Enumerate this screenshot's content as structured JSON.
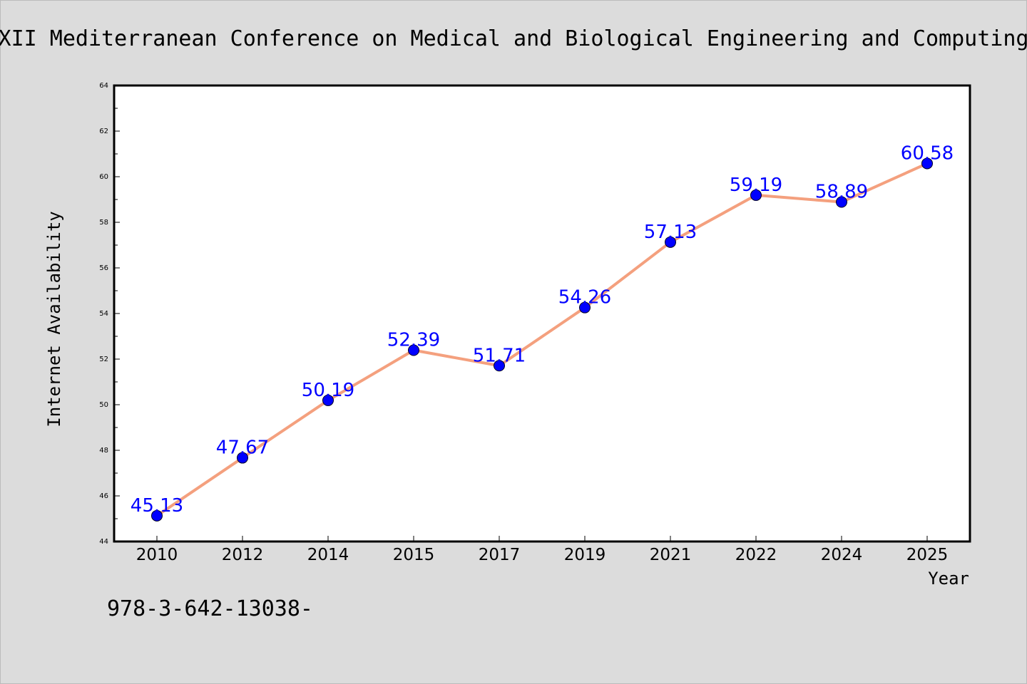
{
  "figure": {
    "title": "XII Mediterranean Conference on Medical and Biological Engineering and Computing",
    "footer": "978-3-642-13038-"
  },
  "colors": {
    "background": "#dcdcdc",
    "plot_background": "#ffffff",
    "line": "#f4a07e",
    "marker": "#0000ff",
    "label": "#0000ff"
  },
  "chart_data": {
    "type": "line",
    "title": "XII Mediterranean Conference on Medical and Biological Engineering and Computing",
    "xlabel": "Year",
    "ylabel": "Internet Availability",
    "categories": [
      "2010",
      "2012",
      "2014",
      "2015",
      "2017",
      "2019",
      "2021",
      "2022",
      "2024",
      "2025"
    ],
    "series": [
      {
        "values": [
          45.13,
          47.67,
          50.19,
          52.39,
          51.71,
          54.26,
          57.13,
          59.19,
          58.89,
          60.58
        ],
        "value_labels": [
          "45.13",
          "47.67",
          "50.19",
          "52.39",
          "51.71",
          "54.26",
          "57.13",
          "59.19",
          "58.89",
          "60.58"
        ]
      }
    ],
    "ylim": [
      44,
      64
    ],
    "yticks": [
      "44",
      "46",
      "48",
      "50",
      "52",
      "54",
      "56",
      "58",
      "60",
      "62",
      "64"
    ],
    "grid": false,
    "legend": "none"
  }
}
